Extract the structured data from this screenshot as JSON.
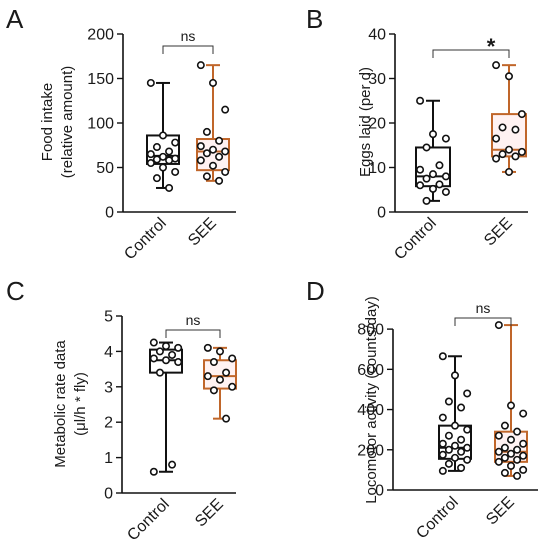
{
  "colors": {
    "control": "#111111",
    "see": "#c0662a",
    "see_fill": "#fff2f2",
    "axis": "#111111"
  },
  "chart_data": [
    {
      "panel": "A",
      "type": "box",
      "categories": [
        "Control",
        "SEE"
      ],
      "ylabel_lines": [
        "Food intake",
        "(relative amount)"
      ],
      "ylim": [
        0,
        200
      ],
      "yticks": [
        0,
        50,
        100,
        150,
        200
      ],
      "significance": "ns",
      "series": [
        {
          "category": "Control",
          "whisker_low": 27,
          "q1": 54,
          "median": 63,
          "q3": 86,
          "whisker_high": 145,
          "points": [
            145,
            86,
            78,
            73,
            68,
            65,
            62,
            60,
            59,
            58,
            55,
            50,
            45,
            38,
            27
          ]
        },
        {
          "category": "SEE",
          "whisker_low": 35,
          "q1": 47,
          "median": 68,
          "q3": 82,
          "whisker_high": 165,
          "points": [
            165,
            145,
            115,
            90,
            80,
            74,
            70,
            68,
            66,
            62,
            58,
            52,
            45,
            40,
            35
          ]
        }
      ]
    },
    {
      "panel": "B",
      "type": "box",
      "categories": [
        "Control",
        "SEE"
      ],
      "ylabel_lines": [
        "Eggs laid (per d)"
      ],
      "ylim": [
        0,
        40
      ],
      "yticks": [
        0,
        10,
        20,
        30,
        40
      ],
      "significance": "*",
      "series": [
        {
          "category": "Control",
          "whisker_low": 2.5,
          "q1": 5.8,
          "median": 8,
          "q3": 14.5,
          "whisker_high": 25,
          "points": [
            25,
            17.5,
            16.5,
            14.5,
            10.5,
            9.5,
            8.5,
            8,
            7.5,
            6.2,
            6,
            5.2,
            4.5,
            2.5
          ]
        },
        {
          "category": "SEE",
          "whisker_low": 9,
          "q1": 12.5,
          "median": 14,
          "q3": 22,
          "whisker_high": 33,
          "points": [
            33,
            30.5,
            22,
            19,
            18.5,
            16.5,
            14,
            13.5,
            13,
            12.5,
            12,
            9
          ]
        }
      ]
    },
    {
      "panel": "C",
      "type": "box",
      "categories": [
        "Control",
        "SEE"
      ],
      "ylabel_lines": [
        "Metabolic rate data",
        "(μl/h * fly)"
      ],
      "ylim": [
        0,
        5
      ],
      "yticks": [
        0,
        1,
        2,
        3,
        4,
        5
      ],
      "significance": "ns",
      "series": [
        {
          "category": "Control",
          "whisker_low": 0.6,
          "q1": 3.4,
          "median": 3.75,
          "q3": 4.05,
          "whisker_high": 4.25,
          "points": [
            4.25,
            4.15,
            4.1,
            4.0,
            3.9,
            3.8,
            3.75,
            3.7,
            3.4,
            0.8,
            0.6
          ]
        },
        {
          "category": "SEE",
          "whisker_low": 2.1,
          "q1": 2.95,
          "median": 3.3,
          "q3": 3.75,
          "whisker_high": 4.1,
          "points": [
            4.1,
            4.0,
            3.8,
            3.7,
            3.4,
            3.3,
            3.2,
            3.0,
            2.9,
            2.1
          ]
        }
      ]
    },
    {
      "panel": "D",
      "type": "box",
      "categories": [
        "Control",
        "SEE"
      ],
      "ylabel_lines": [
        "Locomotor activity (counts/day)"
      ],
      "ylim": [
        0,
        900
      ],
      "yticks": [
        0,
        200,
        400,
        600,
        800
      ],
      "significance": "ns",
      "series": [
        {
          "category": "Control",
          "whisker_low": 95,
          "q1": 155,
          "median": 210,
          "q3": 320,
          "whisker_high": 665,
          "points": [
            665,
            570,
            480,
            440,
            410,
            360,
            320,
            300,
            270,
            250,
            230,
            220,
            210,
            200,
            190,
            175,
            160,
            150,
            130,
            110,
            95
          ]
        },
        {
          "category": "SEE",
          "whisker_low": 70,
          "q1": 140,
          "median": 190,
          "q3": 290,
          "whisker_high": 820,
          "points": [
            820,
            420,
            380,
            320,
            290,
            270,
            250,
            230,
            210,
            200,
            190,
            180,
            170,
            160,
            150,
            140,
            120,
            100,
            85,
            70
          ]
        }
      ]
    }
  ]
}
